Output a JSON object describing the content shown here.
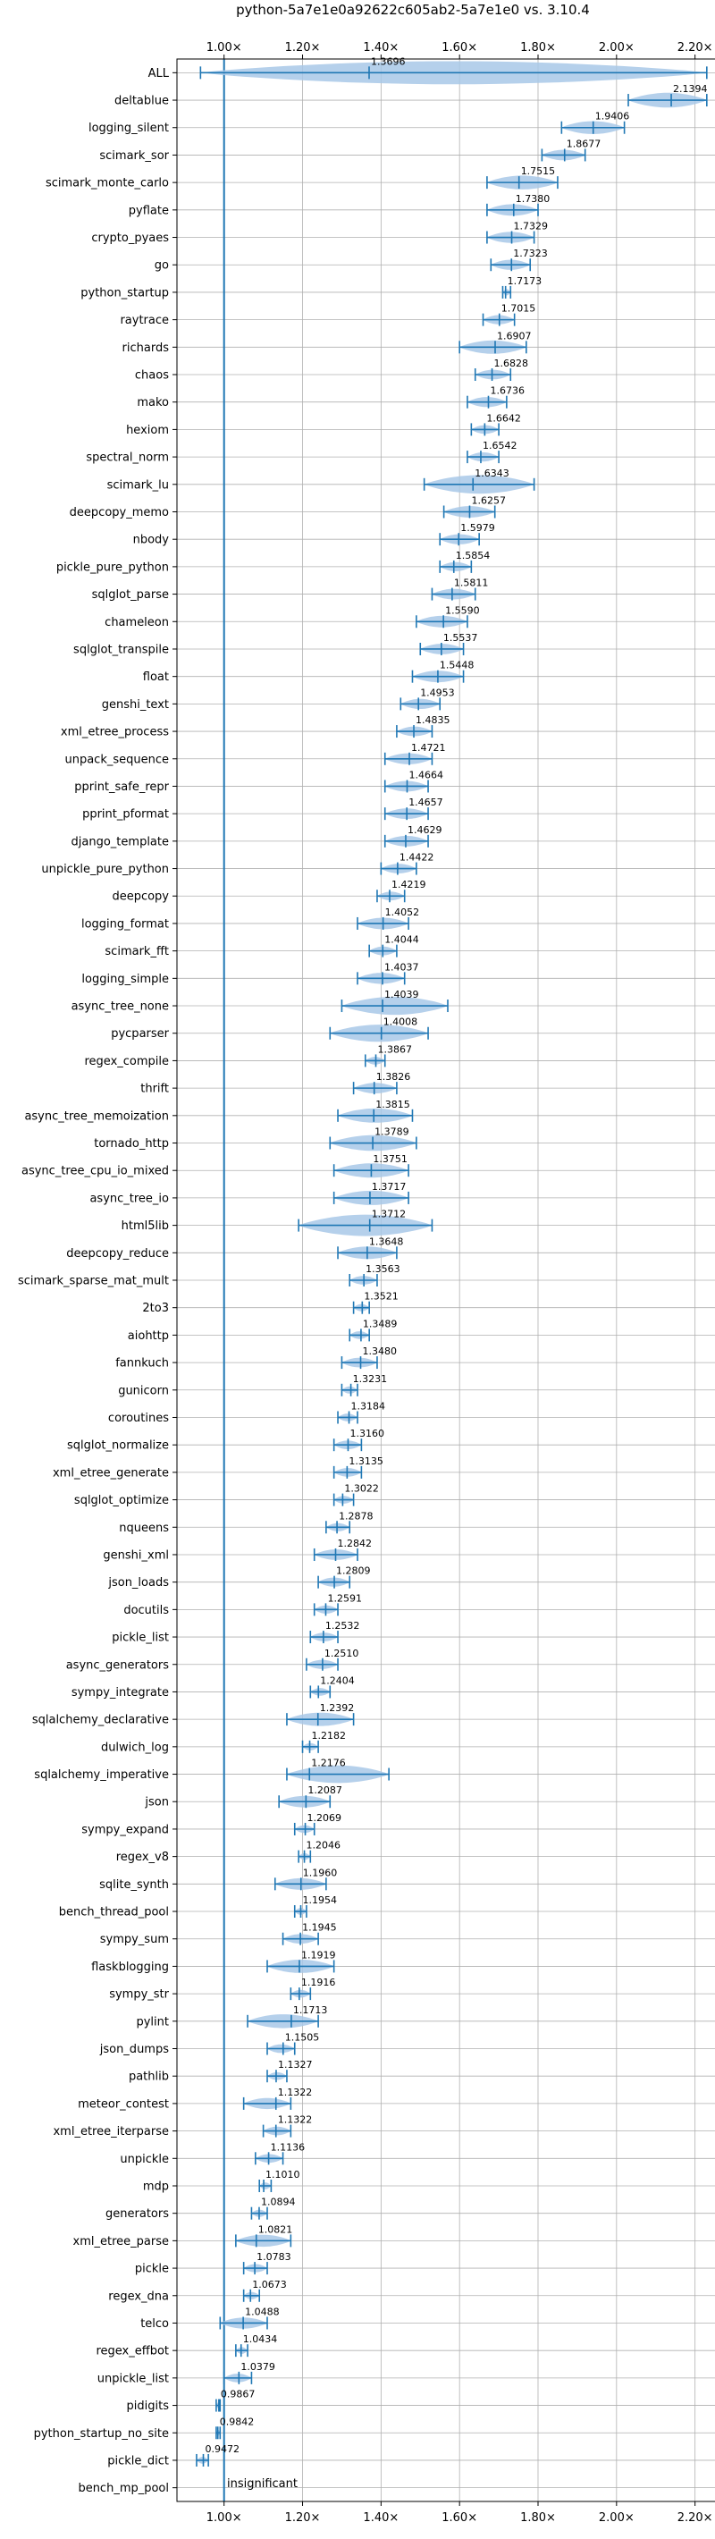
{
  "chart_data": {
    "type": "violin",
    "title": "python-5a7e1e0a92622c605ab2-5a7e1e0 vs. 3.10.4",
    "xlim": [
      0.88,
      2.26
    ],
    "xticks": [
      1.0,
      1.2,
      1.4,
      1.6,
      1.8,
      2.0,
      2.2
    ],
    "xtick_labels": [
      "1.00×",
      "1.20×",
      "1.40×",
      "1.60×",
      "1.80×",
      "2.00×",
      "2.20×"
    ],
    "reference_line": 1.0,
    "grid": true,
    "insignificant_label": "insignificant",
    "colors": {
      "violin": "#a8c8e8",
      "errorbar": "#1f77b4",
      "reference": "#1f77b4",
      "grid": "#b0b0b0"
    },
    "benchmarks": [
      {
        "name": "ALL",
        "value": 1.3696,
        "label": "1.3696",
        "lo": 0.94,
        "hi": 2.23
      },
      {
        "name": "deltablue",
        "value": 2.1394,
        "label": "2.1394",
        "lo": 2.03,
        "hi": 2.23
      },
      {
        "name": "logging_silent",
        "value": 1.9406,
        "label": "1.9406",
        "lo": 1.86,
        "hi": 2.02
      },
      {
        "name": "scimark_sor",
        "value": 1.8677,
        "label": "1.8677",
        "lo": 1.81,
        "hi": 1.92
      },
      {
        "name": "scimark_monte_carlo",
        "value": 1.7515,
        "label": "1.7515",
        "lo": 1.67,
        "hi": 1.85
      },
      {
        "name": "pyflate",
        "value": 1.738,
        "label": "1.7380",
        "lo": 1.67,
        "hi": 1.8
      },
      {
        "name": "crypto_pyaes",
        "value": 1.7329,
        "label": "1.7329",
        "lo": 1.67,
        "hi": 1.79
      },
      {
        "name": "go",
        "value": 1.7323,
        "label": "1.7323",
        "lo": 1.68,
        "hi": 1.78
      },
      {
        "name": "python_startup",
        "value": 1.7173,
        "label": "1.7173",
        "lo": 1.71,
        "hi": 1.73
      },
      {
        "name": "raytrace",
        "value": 1.7015,
        "label": "1.7015",
        "lo": 1.66,
        "hi": 1.74
      },
      {
        "name": "richards",
        "value": 1.6907,
        "label": "1.6907",
        "lo": 1.6,
        "hi": 1.77
      },
      {
        "name": "chaos",
        "value": 1.6828,
        "label": "1.6828",
        "lo": 1.64,
        "hi": 1.73
      },
      {
        "name": "mako",
        "value": 1.6736,
        "label": "1.6736",
        "lo": 1.62,
        "hi": 1.72
      },
      {
        "name": "hexiom",
        "value": 1.6642,
        "label": "1.6642",
        "lo": 1.63,
        "hi": 1.7
      },
      {
        "name": "spectral_norm",
        "value": 1.6542,
        "label": "1.6542",
        "lo": 1.62,
        "hi": 1.7
      },
      {
        "name": "scimark_lu",
        "value": 1.6343,
        "label": "1.6343",
        "lo": 1.51,
        "hi": 1.79
      },
      {
        "name": "deepcopy_memo",
        "value": 1.6257,
        "label": "1.6257",
        "lo": 1.56,
        "hi": 1.69
      },
      {
        "name": "nbody",
        "value": 1.5979,
        "label": "1.5979",
        "lo": 1.55,
        "hi": 1.65
      },
      {
        "name": "pickle_pure_python",
        "value": 1.5854,
        "label": "1.5854",
        "lo": 1.55,
        "hi": 1.63
      },
      {
        "name": "sqlglot_parse",
        "value": 1.5811,
        "label": "1.5811",
        "lo": 1.53,
        "hi": 1.64
      },
      {
        "name": "chameleon",
        "value": 1.559,
        "label": "1.5590",
        "lo": 1.49,
        "hi": 1.62
      },
      {
        "name": "sqlglot_transpile",
        "value": 1.5537,
        "label": "1.5537",
        "lo": 1.5,
        "hi": 1.61
      },
      {
        "name": "float",
        "value": 1.5448,
        "label": "1.5448",
        "lo": 1.48,
        "hi": 1.61
      },
      {
        "name": "genshi_text",
        "value": 1.4953,
        "label": "1.4953",
        "lo": 1.45,
        "hi": 1.55
      },
      {
        "name": "xml_etree_process",
        "value": 1.4835,
        "label": "1.4835",
        "lo": 1.44,
        "hi": 1.53
      },
      {
        "name": "unpack_sequence",
        "value": 1.4721,
        "label": "1.4721",
        "lo": 1.41,
        "hi": 1.53
      },
      {
        "name": "pprint_safe_repr",
        "value": 1.4664,
        "label": "1.4664",
        "lo": 1.41,
        "hi": 1.52
      },
      {
        "name": "pprint_pformat",
        "value": 1.4657,
        "label": "1.4657",
        "lo": 1.41,
        "hi": 1.52
      },
      {
        "name": "django_template",
        "value": 1.4629,
        "label": "1.4629",
        "lo": 1.41,
        "hi": 1.52
      },
      {
        "name": "unpickle_pure_python",
        "value": 1.4422,
        "label": "1.4422",
        "lo": 1.4,
        "hi": 1.49
      },
      {
        "name": "deepcopy",
        "value": 1.4219,
        "label": "1.4219",
        "lo": 1.39,
        "hi": 1.46
      },
      {
        "name": "logging_format",
        "value": 1.4052,
        "label": "1.4052",
        "lo": 1.34,
        "hi": 1.47
      },
      {
        "name": "scimark_fft",
        "value": 1.4044,
        "label": "1.4044",
        "lo": 1.37,
        "hi": 1.44
      },
      {
        "name": "logging_simple",
        "value": 1.4037,
        "label": "1.4037",
        "lo": 1.34,
        "hi": 1.46
      },
      {
        "name": "async_tree_none",
        "value": 1.4039,
        "label": "1.4039",
        "lo": 1.3,
        "hi": 1.57
      },
      {
        "name": "pycparser",
        "value": 1.4008,
        "label": "1.4008",
        "lo": 1.27,
        "hi": 1.52
      },
      {
        "name": "regex_compile",
        "value": 1.3867,
        "label": "1.3867",
        "lo": 1.36,
        "hi": 1.41
      },
      {
        "name": "thrift",
        "value": 1.3826,
        "label": "1.3826",
        "lo": 1.33,
        "hi": 1.44
      },
      {
        "name": "async_tree_memoization",
        "value": 1.3815,
        "label": "1.3815",
        "lo": 1.29,
        "hi": 1.48
      },
      {
        "name": "tornado_http",
        "value": 1.3789,
        "label": "1.3789",
        "lo": 1.27,
        "hi": 1.49
      },
      {
        "name": "async_tree_cpu_io_mixed",
        "value": 1.3751,
        "label": "1.3751",
        "lo": 1.28,
        "hi": 1.47
      },
      {
        "name": "async_tree_io",
        "value": 1.3717,
        "label": "1.3717",
        "lo": 1.28,
        "hi": 1.47
      },
      {
        "name": "html5lib",
        "value": 1.3712,
        "label": "1.3712",
        "lo": 1.19,
        "hi": 1.53
      },
      {
        "name": "deepcopy_reduce",
        "value": 1.3648,
        "label": "1.3648",
        "lo": 1.29,
        "hi": 1.44
      },
      {
        "name": "scimark_sparse_mat_mult",
        "value": 1.3563,
        "label": "1.3563",
        "lo": 1.32,
        "hi": 1.39
      },
      {
        "name": "2to3",
        "value": 1.3521,
        "label": "1.3521",
        "lo": 1.33,
        "hi": 1.37
      },
      {
        "name": "aiohttp",
        "value": 1.3489,
        "label": "1.3489",
        "lo": 1.32,
        "hi": 1.37
      },
      {
        "name": "fannkuch",
        "value": 1.348,
        "label": "1.3480",
        "lo": 1.3,
        "hi": 1.39
      },
      {
        "name": "gunicorn",
        "value": 1.3231,
        "label": "1.3231",
        "lo": 1.3,
        "hi": 1.34
      },
      {
        "name": "coroutines",
        "value": 1.3184,
        "label": "1.3184",
        "lo": 1.29,
        "hi": 1.34
      },
      {
        "name": "sqlglot_normalize",
        "value": 1.316,
        "label": "1.3160",
        "lo": 1.28,
        "hi": 1.35
      },
      {
        "name": "xml_etree_generate",
        "value": 1.3135,
        "label": "1.3135",
        "lo": 1.28,
        "hi": 1.35
      },
      {
        "name": "sqlglot_optimize",
        "value": 1.3022,
        "label": "1.3022",
        "lo": 1.28,
        "hi": 1.33
      },
      {
        "name": "nqueens",
        "value": 1.2878,
        "label": "1.2878",
        "lo": 1.26,
        "hi": 1.32
      },
      {
        "name": "genshi_xml",
        "value": 1.2842,
        "label": "1.2842",
        "lo": 1.23,
        "hi": 1.34
      },
      {
        "name": "json_loads",
        "value": 1.2809,
        "label": "1.2809",
        "lo": 1.24,
        "hi": 1.32
      },
      {
        "name": "docutils",
        "value": 1.2591,
        "label": "1.2591",
        "lo": 1.23,
        "hi": 1.29
      },
      {
        "name": "pickle_list",
        "value": 1.2532,
        "label": "1.2532",
        "lo": 1.22,
        "hi": 1.29
      },
      {
        "name": "async_generators",
        "value": 1.251,
        "label": "1.2510",
        "lo": 1.21,
        "hi": 1.29
      },
      {
        "name": "sympy_integrate",
        "value": 1.2404,
        "label": "1.2404",
        "lo": 1.22,
        "hi": 1.27
      },
      {
        "name": "sqlalchemy_declarative",
        "value": 1.2392,
        "label": "1.2392",
        "lo": 1.16,
        "hi": 1.33
      },
      {
        "name": "dulwich_log",
        "value": 1.2182,
        "label": "1.2182",
        "lo": 1.2,
        "hi": 1.24
      },
      {
        "name": "sqlalchemy_imperative",
        "value": 1.2176,
        "label": "1.2176",
        "lo": 1.16,
        "hi": 1.42
      },
      {
        "name": "json",
        "value": 1.2087,
        "label": "1.2087",
        "lo": 1.14,
        "hi": 1.27
      },
      {
        "name": "sympy_expand",
        "value": 1.2069,
        "label": "1.2069",
        "lo": 1.18,
        "hi": 1.23
      },
      {
        "name": "regex_v8",
        "value": 1.2046,
        "label": "1.2046",
        "lo": 1.19,
        "hi": 1.22
      },
      {
        "name": "sqlite_synth",
        "value": 1.196,
        "label": "1.1960",
        "lo": 1.13,
        "hi": 1.26
      },
      {
        "name": "bench_thread_pool",
        "value": 1.1954,
        "label": "1.1954",
        "lo": 1.18,
        "hi": 1.21
      },
      {
        "name": "sympy_sum",
        "value": 1.1945,
        "label": "1.1945",
        "lo": 1.15,
        "hi": 1.24
      },
      {
        "name": "flaskblogging",
        "value": 1.1919,
        "label": "1.1919",
        "lo": 1.11,
        "hi": 1.28
      },
      {
        "name": "sympy_str",
        "value": 1.1916,
        "label": "1.1916",
        "lo": 1.17,
        "hi": 1.22
      },
      {
        "name": "pylint",
        "value": 1.1713,
        "label": "1.1713",
        "lo": 1.06,
        "hi": 1.24
      },
      {
        "name": "json_dumps",
        "value": 1.1505,
        "label": "1.1505",
        "lo": 1.11,
        "hi": 1.18
      },
      {
        "name": "pathlib",
        "value": 1.1327,
        "label": "1.1327",
        "lo": 1.11,
        "hi": 1.16
      },
      {
        "name": "meteor_contest",
        "value": 1.1322,
        "label": "1.1322",
        "lo": 1.05,
        "hi": 1.17
      },
      {
        "name": "xml_etree_iterparse",
        "value": 1.1322,
        "label": "1.1322",
        "lo": 1.1,
        "hi": 1.17
      },
      {
        "name": "unpickle",
        "value": 1.1136,
        "label": "1.1136",
        "lo": 1.08,
        "hi": 1.15
      },
      {
        "name": "mdp",
        "value": 1.101,
        "label": "1.1010",
        "lo": 1.09,
        "hi": 1.12
      },
      {
        "name": "generators",
        "value": 1.0894,
        "label": "1.0894",
        "lo": 1.07,
        "hi": 1.11
      },
      {
        "name": "xml_etree_parse",
        "value": 1.0821,
        "label": "1.0821",
        "lo": 1.03,
        "hi": 1.17
      },
      {
        "name": "pickle",
        "value": 1.0783,
        "label": "1.0783",
        "lo": 1.05,
        "hi": 1.11
      },
      {
        "name": "regex_dna",
        "value": 1.0673,
        "label": "1.0673",
        "lo": 1.05,
        "hi": 1.09
      },
      {
        "name": "telco",
        "value": 1.0488,
        "label": "1.0488",
        "lo": 0.99,
        "hi": 1.11
      },
      {
        "name": "regex_effbot",
        "value": 1.0434,
        "label": "1.0434",
        "lo": 1.03,
        "hi": 1.06
      },
      {
        "name": "unpickle_list",
        "value": 1.0379,
        "label": "1.0379",
        "lo": 1.0,
        "hi": 1.07
      },
      {
        "name": "pidigits",
        "value": 0.9867,
        "label": "0.9867",
        "lo": 0.98,
        "hi": 0.99
      },
      {
        "name": "python_startup_no_site",
        "value": 0.9842,
        "label": "0.9842",
        "lo": 0.98,
        "hi": 0.99
      },
      {
        "name": "pickle_dict",
        "value": 0.9472,
        "label": "0.9472",
        "lo": 0.93,
        "hi": 0.96
      },
      {
        "name": "bench_mp_pool",
        "value": null,
        "label": "",
        "lo": null,
        "hi": null
      }
    ]
  }
}
